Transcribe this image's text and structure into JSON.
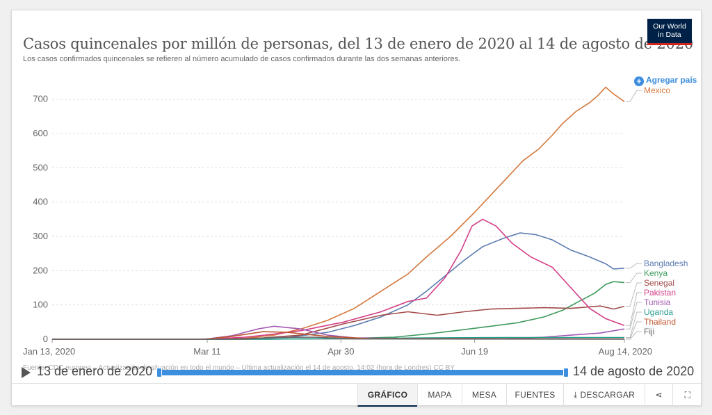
{
  "header": {
    "title": "Casos quincenales por millón de personas, del 13 de enero de 2020 al 14 de agosto de 2020",
    "subtitle": "Los casos confirmados quincenales se refieren al número acumulado de casos confirmados durante las dos semanas anteriores.",
    "logo_line1": "Our World",
    "logo_line2": "in Data",
    "add_country": "Agregar país"
  },
  "footer": {
    "source": "Fuente: CDC europeo – Actualización de situación en todo el mundo – Última actualización el 14 de agosto, 14:02 (hora de Londres)",
    "license": "CC BY"
  },
  "timeline": {
    "start_label": "13 de enero de 2020",
    "end_label": "14 de agosto de 2020"
  },
  "tabs": [
    {
      "label": "GRÁFICO",
      "icon": ""
    },
    {
      "label": "MAPA",
      "icon": ""
    },
    {
      "label": "MESA",
      "icon": ""
    },
    {
      "label": "FUENTES",
      "icon": ""
    },
    {
      "label": "DESCARGAR",
      "icon": "download-icon"
    },
    {
      "label": "",
      "icon": "share-icon"
    },
    {
      "label": "",
      "icon": "fullscreen-icon"
    }
  ],
  "chart_data": {
    "type": "line",
    "title": "Casos quincenales por millón de personas, del 13 de enero de 2020 al 14 de agosto de 2020",
    "xlabel": "",
    "ylabel": "",
    "x_range": [
      "2020-01-13",
      "2020-08-14"
    ],
    "ylim": [
      0,
      740
    ],
    "yticks": [
      0,
      100,
      200,
      300,
      400,
      500,
      600,
      700
    ],
    "xticks": [
      {
        "date": "2020-01-13",
        "label": "Jan 13, 2020"
      },
      {
        "date": "2020-03-11",
        "label": "Mar 11"
      },
      {
        "date": "2020-04-30",
        "label": "Apr 30"
      },
      {
        "date": "2020-06-19",
        "label": "Jun 19"
      },
      {
        "date": "2020-08-14",
        "label": "Aug 14, 2020"
      }
    ],
    "grid": "horizontal dashed",
    "legend": "right, labels at line ends",
    "series": [
      {
        "name": "Mexico",
        "color": "#d4773b",
        "points": [
          [
            "2020-01-13",
            0
          ],
          [
            "2020-03-05",
            0
          ],
          [
            "2020-03-25",
            3
          ],
          [
            "2020-04-05",
            12
          ],
          [
            "2020-04-15",
            30
          ],
          [
            "2020-04-25",
            55
          ],
          [
            "2020-05-05",
            90
          ],
          [
            "2020-05-15",
            140
          ],
          [
            "2020-05-25",
            190
          ],
          [
            "2020-06-01",
            240
          ],
          [
            "2020-06-10",
            300
          ],
          [
            "2020-06-19",
            370
          ],
          [
            "2020-06-25",
            420
          ],
          [
            "2020-07-01",
            470
          ],
          [
            "2020-07-07",
            520
          ],
          [
            "2020-07-13",
            555
          ],
          [
            "2020-07-18",
            595
          ],
          [
            "2020-07-22",
            630
          ],
          [
            "2020-07-27",
            665
          ],
          [
            "2020-08-01",
            690
          ],
          [
            "2020-08-04",
            710
          ],
          [
            "2020-08-07",
            735
          ],
          [
            "2020-08-10",
            715
          ],
          [
            "2020-08-14",
            693
          ]
        ]
      },
      {
        "name": "Bangladesh",
        "color": "#5b7cb1",
        "points": [
          [
            "2020-01-13",
            0
          ],
          [
            "2020-03-20",
            0
          ],
          [
            "2020-04-10",
            5
          ],
          [
            "2020-04-25",
            20
          ],
          [
            "2020-05-05",
            40
          ],
          [
            "2020-05-15",
            65
          ],
          [
            "2020-05-25",
            100
          ],
          [
            "2020-06-01",
            140
          ],
          [
            "2020-06-08",
            185
          ],
          [
            "2020-06-15",
            230
          ],
          [
            "2020-06-22",
            270
          ],
          [
            "2020-06-30",
            295
          ],
          [
            "2020-07-06",
            310
          ],
          [
            "2020-07-12",
            305
          ],
          [
            "2020-07-18",
            290
          ],
          [
            "2020-07-25",
            260
          ],
          [
            "2020-08-01",
            240
          ],
          [
            "2020-08-07",
            220
          ],
          [
            "2020-08-10",
            205
          ],
          [
            "2020-08-14",
            207
          ]
        ]
      },
      {
        "name": "Kenya",
        "color": "#3d9a5c",
        "points": [
          [
            "2020-01-13",
            0
          ],
          [
            "2020-04-01",
            0
          ],
          [
            "2020-05-01",
            2
          ],
          [
            "2020-05-20",
            6
          ],
          [
            "2020-06-01",
            15
          ],
          [
            "2020-06-15",
            28
          ],
          [
            "2020-06-25",
            38
          ],
          [
            "2020-07-05",
            48
          ],
          [
            "2020-07-15",
            65
          ],
          [
            "2020-07-22",
            85
          ],
          [
            "2020-07-28",
            110
          ],
          [
            "2020-08-03",
            135
          ],
          [
            "2020-08-07",
            160
          ],
          [
            "2020-08-10",
            168
          ],
          [
            "2020-08-14",
            165
          ]
        ]
      },
      {
        "name": "Senegal",
        "color": "#a24a4a",
        "points": [
          [
            "2020-01-13",
            0
          ],
          [
            "2020-03-15",
            0
          ],
          [
            "2020-04-01",
            4
          ],
          [
            "2020-04-15",
            12
          ],
          [
            "2020-05-01",
            45
          ],
          [
            "2020-05-15",
            70
          ],
          [
            "2020-05-25",
            80
          ],
          [
            "2020-06-05",
            70
          ],
          [
            "2020-06-15",
            80
          ],
          [
            "2020-06-25",
            88
          ],
          [
            "2020-07-05",
            90
          ],
          [
            "2020-07-15",
            92
          ],
          [
            "2020-07-25",
            90
          ],
          [
            "2020-08-05",
            97
          ],
          [
            "2020-08-10",
            88
          ],
          [
            "2020-08-14",
            96
          ]
        ]
      },
      {
        "name": "Pakistan",
        "color": "#d43f87",
        "points": [
          [
            "2020-01-13",
            0
          ],
          [
            "2020-03-10",
            0
          ],
          [
            "2020-03-25",
            6
          ],
          [
            "2020-04-05",
            15
          ],
          [
            "2020-04-15",
            25
          ],
          [
            "2020-05-01",
            50
          ],
          [
            "2020-05-15",
            80
          ],
          [
            "2020-05-25",
            110
          ],
          [
            "2020-06-01",
            120
          ],
          [
            "2020-06-08",
            180
          ],
          [
            "2020-06-14",
            260
          ],
          [
            "2020-06-18",
            330
          ],
          [
            "2020-06-22",
            350
          ],
          [
            "2020-06-27",
            330
          ],
          [
            "2020-07-03",
            280
          ],
          [
            "2020-07-10",
            240
          ],
          [
            "2020-07-18",
            210
          ],
          [
            "2020-07-25",
            150
          ],
          [
            "2020-08-01",
            90
          ],
          [
            "2020-08-07",
            60
          ],
          [
            "2020-08-14",
            40
          ]
        ]
      },
      {
        "name": "Tunisia",
        "color": "#a259b0",
        "points": [
          [
            "2020-01-13",
            0
          ],
          [
            "2020-03-10",
            0
          ],
          [
            "2020-03-20",
            10
          ],
          [
            "2020-03-30",
            30
          ],
          [
            "2020-04-05",
            38
          ],
          [
            "2020-04-15",
            30
          ],
          [
            "2020-04-25",
            12
          ],
          [
            "2020-05-05",
            4
          ],
          [
            "2020-06-01",
            2
          ],
          [
            "2020-07-01",
            2
          ],
          [
            "2020-07-15",
            6
          ],
          [
            "2020-07-25",
            12
          ],
          [
            "2020-08-05",
            18
          ],
          [
            "2020-08-14",
            30
          ]
        ]
      },
      {
        "name": "Uganda",
        "color": "#2a9d8f",
        "points": [
          [
            "2020-01-13",
            0
          ],
          [
            "2020-04-01",
            0
          ],
          [
            "2020-05-01",
            2
          ],
          [
            "2020-06-01",
            4
          ],
          [
            "2020-07-01",
            5
          ],
          [
            "2020-08-14",
            5
          ]
        ]
      },
      {
        "name": "Thailand",
        "color": "#c0552d",
        "points": [
          [
            "2020-01-13",
            0
          ],
          [
            "2020-03-10",
            0
          ],
          [
            "2020-03-20",
            8
          ],
          [
            "2020-04-01",
            22
          ],
          [
            "2020-04-10",
            20
          ],
          [
            "2020-04-25",
            8
          ],
          [
            "2020-05-10",
            2
          ],
          [
            "2020-08-14",
            1
          ]
        ]
      },
      {
        "name": "Fiji",
        "color": "#666666",
        "points": [
          [
            "2020-01-13",
            0
          ],
          [
            "2020-03-25",
            0
          ],
          [
            "2020-04-05",
            5
          ],
          [
            "2020-04-20",
            6
          ],
          [
            "2020-05-05",
            1
          ],
          [
            "2020-08-14",
            0
          ]
        ]
      }
    ]
  }
}
